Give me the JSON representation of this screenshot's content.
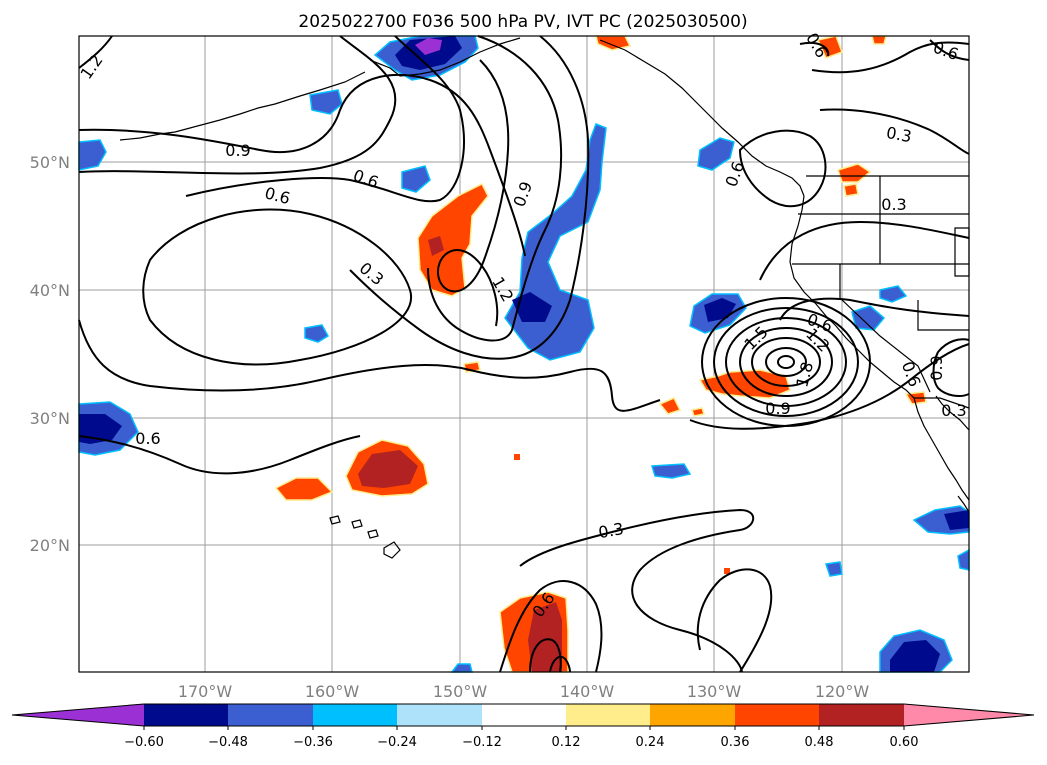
{
  "title": "2025022700 F036 500 hPa PV, IVT PC (2025030500)",
  "map": {
    "lat_labels": [
      "50°N",
      "40°N",
      "30°N",
      "20°N"
    ],
    "lon_labels": [
      "170°W",
      "160°W",
      "150°W",
      "140°W",
      "130°W",
      "120°W"
    ],
    "contour_labels": [
      "1.2",
      "0.9",
      "0.6",
      "0.6",
      "0.3",
      "0.9",
      "1.2",
      "0.6",
      "0.3",
      "0.3",
      "0.6",
      "0.6",
      "1.5",
      "1.2",
      "1.8",
      "0.9",
      "0.6",
      "0.6",
      "0.9",
      "0.3",
      "0.6",
      "0.3",
      "0.6"
    ]
  },
  "colorbar": {
    "ticks": [
      "−0.60",
      "−0.48",
      "−0.36",
      "−0.24",
      "−0.12",
      "0.12",
      "0.24",
      "0.36",
      "0.48",
      "0.60"
    ],
    "colors": [
      "#9b30d4",
      "#000a8c",
      "#3b5fd0",
      "#00bfff",
      "#aee2fa",
      "#ffffff",
      "#ffec8b",
      "#ffa500",
      "#ff4500",
      "#b22222",
      "#ff89a8"
    ]
  },
  "colors": {
    "coast": "#000000",
    "contour": "#000000",
    "grid": "#9e9e9e"
  }
}
